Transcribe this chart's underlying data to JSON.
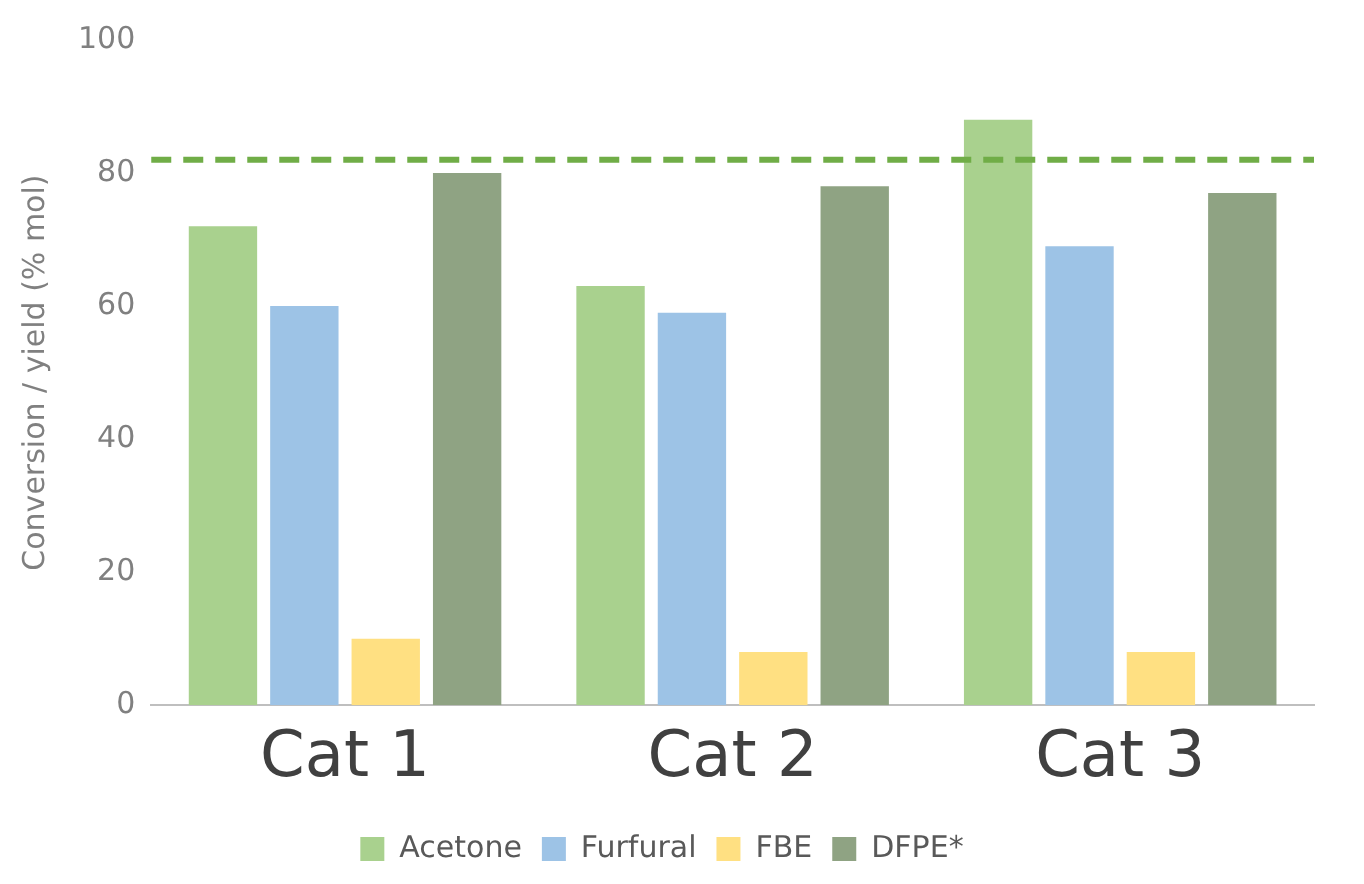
{
  "chart_data": {
    "type": "bar",
    "ylabel": "Conversion / yield (% mol)",
    "categories": [
      "Cat 1",
      "Cat 2",
      "Cat 3"
    ],
    "series": [
      {
        "name": "Acetone",
        "color": "#a9d18e",
        "values": [
          72,
          63,
          88
        ]
      },
      {
        "name": "Furfural",
        "color": "#9dc3e6",
        "values": [
          60,
          59,
          69
        ]
      },
      {
        "name": "FBE",
        "color": "#ffe082",
        "values": [
          10,
          8,
          8
        ]
      },
      {
        "name": "DFPE*",
        "color": "#8fa383",
        "values": [
          80,
          78,
          77
        ]
      }
    ],
    "ylim": [
      0,
      100
    ],
    "yticks": [
      0,
      20,
      40,
      60,
      80,
      100
    ],
    "grid": false,
    "legend": "bottom",
    "ref_lines": [
      {
        "axis": "y",
        "value": 82,
        "color": "#70ad47",
        "line_style": "dashed"
      }
    ]
  }
}
